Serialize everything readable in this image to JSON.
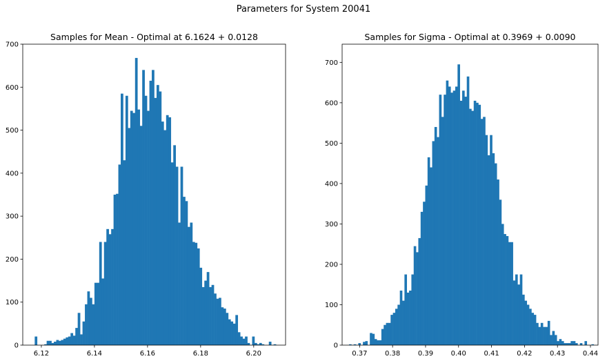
{
  "suptitle": "Parameters for System 20041",
  "chart_data": [
    {
      "type": "bar",
      "title": "Samples for Mean - Optimal at 6.1624 + 0.0128",
      "xlabel": "",
      "ylabel": "",
      "xlim": [
        6.113,
        6.212
      ],
      "ylim": [
        0,
        700
      ],
      "xticks": [
        6.12,
        6.14,
        6.16,
        6.18,
        6.2
      ],
      "xtick_labels": [
        "6.12",
        "6.14",
        "6.16",
        "6.18",
        "6.20"
      ],
      "yticks": [
        0,
        100,
        200,
        300,
        400,
        500,
        600,
        700
      ],
      "grid": false,
      "color": "#1f77b4",
      "bin_start": 6.1175,
      "bin_width": 0.0009,
      "values": [
        20,
        0,
        0,
        0,
        2,
        10,
        10,
        5,
        8,
        12,
        10,
        12,
        15,
        18,
        20,
        28,
        22,
        40,
        75,
        25,
        55,
        95,
        125,
        110,
        95,
        145,
        145,
        240,
        155,
        240,
        270,
        258,
        270,
        350,
        352,
        420,
        585,
        430,
        580,
        505,
        545,
        540,
        668,
        548,
        510,
        640,
        580,
        545,
        615,
        640,
        575,
        605,
        590,
        520,
        500,
        535,
        530,
        425,
        465,
        415,
        285,
        415,
        345,
        335,
        275,
        285,
        240,
        238,
        225,
        180,
        135,
        150,
        170,
        135,
        140,
        120,
        108,
        110,
        88,
        85,
        75,
        60,
        55,
        50,
        70,
        30,
        20,
        15,
        20,
        5,
        0,
        20,
        5,
        2,
        5,
        2,
        0,
        0,
        8,
        0,
        2,
        0,
        0
      ]
    },
    {
      "type": "bar",
      "title": "Samples for Sigma - Optimal at 0.3969 + 0.0090",
      "xlabel": "",
      "ylabel": "",
      "xlim": [
        0.3647,
        0.4423
      ],
      "ylim": [
        0,
        745
      ],
      "xticks": [
        0.37,
        0.38,
        0.39,
        0.4,
        0.41,
        0.42,
        0.43,
        0.44
      ],
      "xtick_labels": [
        "0.37",
        "0.38",
        "0.39",
        "0.40",
        "0.41",
        "0.42",
        "0.43",
        "0.44"
      ],
      "yticks": [
        0,
        100,
        200,
        300,
        400,
        500,
        600,
        700
      ],
      "grid": false,
      "color": "#1f77b4",
      "bin_start": 0.3668,
      "bin_width": 0.0007,
      "values": [
        2,
        0,
        2,
        0,
        5,
        0,
        8,
        10,
        0,
        30,
        28,
        15,
        12,
        12,
        40,
        50,
        55,
        55,
        75,
        80,
        90,
        100,
        135,
        110,
        175,
        130,
        135,
        175,
        245,
        230,
        265,
        330,
        355,
        395,
        465,
        440,
        505,
        540,
        515,
        620,
        565,
        620,
        655,
        640,
        625,
        630,
        640,
        695,
        605,
        630,
        615,
        665,
        585,
        580,
        605,
        600,
        595,
        560,
        565,
        520,
        470,
        520,
        475,
        450,
        410,
        360,
        300,
        275,
        270,
        255,
        255,
        160,
        175,
        150,
        175,
        125,
        110,
        100,
        90,
        80,
        75,
        55,
        45,
        55,
        45,
        45,
        60,
        25,
        35,
        25,
        10,
        15,
        10,
        5,
        5,
        5,
        10,
        10,
        5,
        0,
        5,
        0,
        10,
        0,
        0,
        2,
        0,
        0,
        0,
        0,
        0,
        0,
        0,
        0,
        0,
        0,
        0,
        0,
        5,
        2,
        5,
        0,
        0,
        0,
        0,
        0,
        0,
        5,
        10,
        0,
        0
      ]
    }
  ]
}
